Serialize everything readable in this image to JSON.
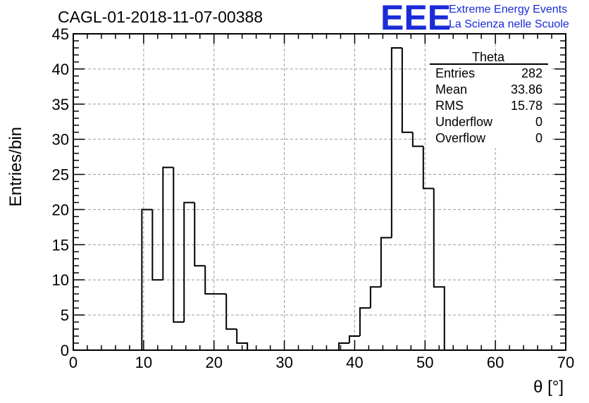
{
  "chart_data": {
    "type": "histogram",
    "title": "CAGL-01-2018-11-07-00388",
    "xlabel": "θ [°]",
    "ylabel": "Entries/bin",
    "xlim": [
      0,
      70
    ],
    "ylim": [
      0,
      45
    ],
    "x_ticks": [
      0,
      10,
      20,
      30,
      40,
      50,
      60,
      70
    ],
    "y_ticks": [
      0,
      5,
      10,
      15,
      20,
      25,
      30,
      35,
      40,
      45
    ],
    "grid": true,
    "bin_width": 1.5,
    "bins": [
      {
        "x0": 9.75,
        "x1": 11.25,
        "count": 20
      },
      {
        "x0": 11.25,
        "x1": 12.75,
        "count": 10
      },
      {
        "x0": 12.75,
        "x1": 14.25,
        "count": 26
      },
      {
        "x0": 14.25,
        "x1": 15.75,
        "count": 4
      },
      {
        "x0": 15.75,
        "x1": 17.25,
        "count": 21
      },
      {
        "x0": 17.25,
        "x1": 18.75,
        "count": 12
      },
      {
        "x0": 18.75,
        "x1": 20.25,
        "count": 8
      },
      {
        "x0": 20.25,
        "x1": 21.75,
        "count": 8
      },
      {
        "x0": 21.75,
        "x1": 23.25,
        "count": 3
      },
      {
        "x0": 23.25,
        "x1": 24.75,
        "count": 1
      },
      {
        "x0": 37.75,
        "x1": 39.25,
        "count": 1
      },
      {
        "x0": 39.25,
        "x1": 40.75,
        "count": 2
      },
      {
        "x0": 40.75,
        "x1": 42.25,
        "count": 6
      },
      {
        "x0": 42.25,
        "x1": 43.75,
        "count": 9
      },
      {
        "x0": 43.75,
        "x1": 45.25,
        "count": 16
      },
      {
        "x0": 45.25,
        "x1": 46.75,
        "count": 43
      },
      {
        "x0": 46.75,
        "x1": 48.25,
        "count": 31
      },
      {
        "x0": 48.25,
        "x1": 49.75,
        "count": 29
      },
      {
        "x0": 49.75,
        "x1": 51.25,
        "count": 23
      },
      {
        "x0": 51.25,
        "x1": 52.75,
        "count": 9
      }
    ],
    "stats_box": {
      "name": "Theta",
      "rows": [
        {
          "label": "Entries",
          "value": "282"
        },
        {
          "label": "Mean",
          "value": "33.86"
        },
        {
          "label": "RMS",
          "value": "15.78"
        },
        {
          "label": "Underflow",
          "value": "0"
        },
        {
          "label": "Overflow",
          "value": "0"
        }
      ]
    }
  },
  "logo": {
    "mark": "EEE",
    "line1": "Extreme Energy Events",
    "line2": "La Scienza nelle Scuole",
    "color": "#1a2bd8"
  }
}
